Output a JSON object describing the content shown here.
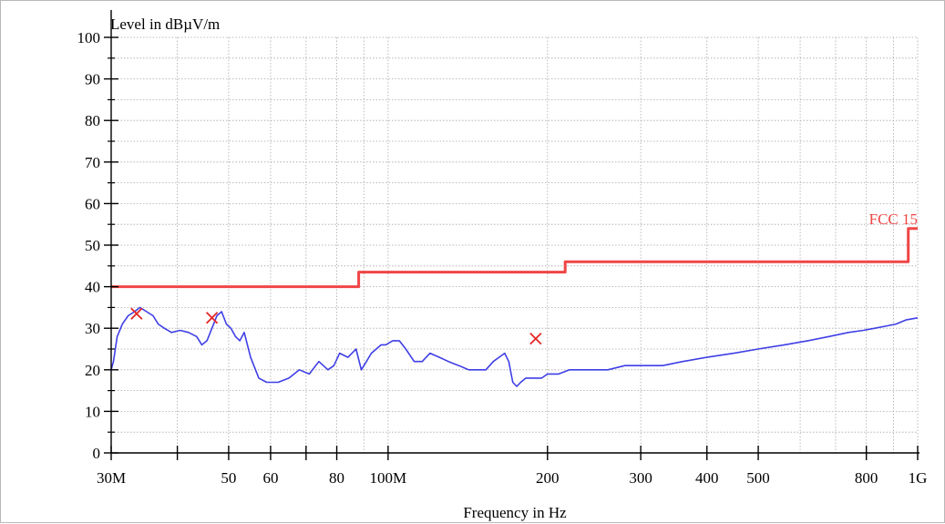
{
  "chart_data": {
    "type": "line",
    "ylabel": "Level in dBµV/m",
    "xlabel": "Frequency in Hz",
    "x_scale": "log",
    "xlim": [
      30000000,
      1000000000
    ],
    "ylim": [
      0,
      100
    ],
    "x_ticks": [
      {
        "value": 30000000,
        "label": "30M"
      },
      {
        "value": 40000000,
        "label": ""
      },
      {
        "value": 50000000,
        "label": "50"
      },
      {
        "value": 60000000,
        "label": "60"
      },
      {
        "value": 70000000,
        "label": ""
      },
      {
        "value": 80000000,
        "label": "80"
      },
      {
        "value": 100000000,
        "label": "100M"
      },
      {
        "value": 200000000,
        "label": "200"
      },
      {
        "value": 300000000,
        "label": "300"
      },
      {
        "value": 400000000,
        "label": "400"
      },
      {
        "value": 500000000,
        "label": "500"
      },
      {
        "value": 800000000,
        "label": "800"
      },
      {
        "value": 1000000000,
        "label": "1G"
      }
    ],
    "y_ticks": [
      {
        "value": 0,
        "label": "0"
      },
      {
        "value": 10,
        "label": "10"
      },
      {
        "value": 20,
        "label": "20"
      },
      {
        "value": 30,
        "label": "30"
      },
      {
        "value": 40,
        "label": "40"
      },
      {
        "value": 50,
        "label": "50"
      },
      {
        "value": 60,
        "label": "60"
      },
      {
        "value": 70,
        "label": "70"
      },
      {
        "value": 80,
        "label": "80"
      },
      {
        "value": 90,
        "label": "90"
      },
      {
        "value": 100,
        "label": "100"
      }
    ],
    "grid": true,
    "series": [
      {
        "name": "",
        "color": "#3f3fe6",
        "x": [
          30000000,
          30300000,
          30800000,
          31500000,
          32300000,
          33200000,
          34000000,
          35000000,
          36000000,
          36800000,
          37800000,
          39000000,
          40500000,
          42000000,
          43500000,
          44500000,
          45500000,
          46500000,
          47500000,
          48500000,
          49500000,
          50500000,
          51500000,
          52500000,
          53500000,
          55000000,
          57000000,
          59000000,
          62000000,
          65000000,
          68000000,
          71000000,
          74000000,
          77000000,
          79000000,
          81000000,
          84000000,
          87000000,
          89000000,
          91000000,
          93000000,
          95000000,
          97000000,
          99000000,
          102000000,
          105000000,
          108000000,
          112000000,
          116000000,
          120000000,
          125000000,
          130000000,
          136000000,
          142000000,
          148000000,
          153000000,
          158000000,
          162000000,
          166000000,
          169000000,
          172000000,
          175000000,
          178000000,
          182000000,
          186000000,
          190000000,
          195000000,
          200000000,
          210000000,
          220000000,
          230000000,
          245000000,
          260000000,
          280000000,
          300000000,
          330000000,
          360000000,
          400000000,
          450000000,
          500000000,
          560000000,
          620000000,
          680000000,
          740000000,
          790000000,
          830000000,
          870000000,
          910000000,
          950000000,
          1000000000
        ],
        "values": [
          20,
          22,
          28,
          31,
          33,
          34,
          35,
          34,
          33,
          31,
          30,
          29,
          29.5,
          29,
          28,
          26,
          27,
          30,
          33,
          34,
          31,
          30,
          28,
          27,
          29,
          23,
          18,
          17,
          17,
          18,
          20,
          19,
          22,
          20,
          21,
          24,
          23,
          25,
          20,
          22,
          24,
          25,
          26,
          26,
          27,
          27,
          25,
          22,
          22,
          24,
          23,
          22,
          21,
          20,
          20,
          20,
          22,
          23,
          24,
          22,
          17,
          16,
          17,
          18,
          18,
          18,
          18,
          19,
          19,
          20,
          20,
          20,
          20,
          21,
          21,
          21,
          22,
          23,
          24,
          25,
          26,
          27,
          28,
          29,
          29.5,
          30,
          30.5,
          31,
          32,
          32.5
        ]
      },
      {
        "name": "FCC 15",
        "color": "#f04545",
        "x": [
          30000000,
          88000000,
          88000000,
          216000000,
          216000000,
          960000000,
          960000000,
          1000000000
        ],
        "values": [
          40,
          40,
          43.5,
          43.5,
          46,
          46,
          54,
          54
        ]
      }
    ],
    "markers": {
      "color": "#e52525",
      "x": [
        33500000,
        46500000,
        190000000
      ],
      "values": [
        33.5,
        32.5,
        27.5
      ]
    },
    "colors": {
      "grid": "#a8a8a8",
      "axis": "#000000",
      "trace": "#3f3fe6",
      "limit": "#f04545",
      "marker": "#e52525"
    }
  }
}
